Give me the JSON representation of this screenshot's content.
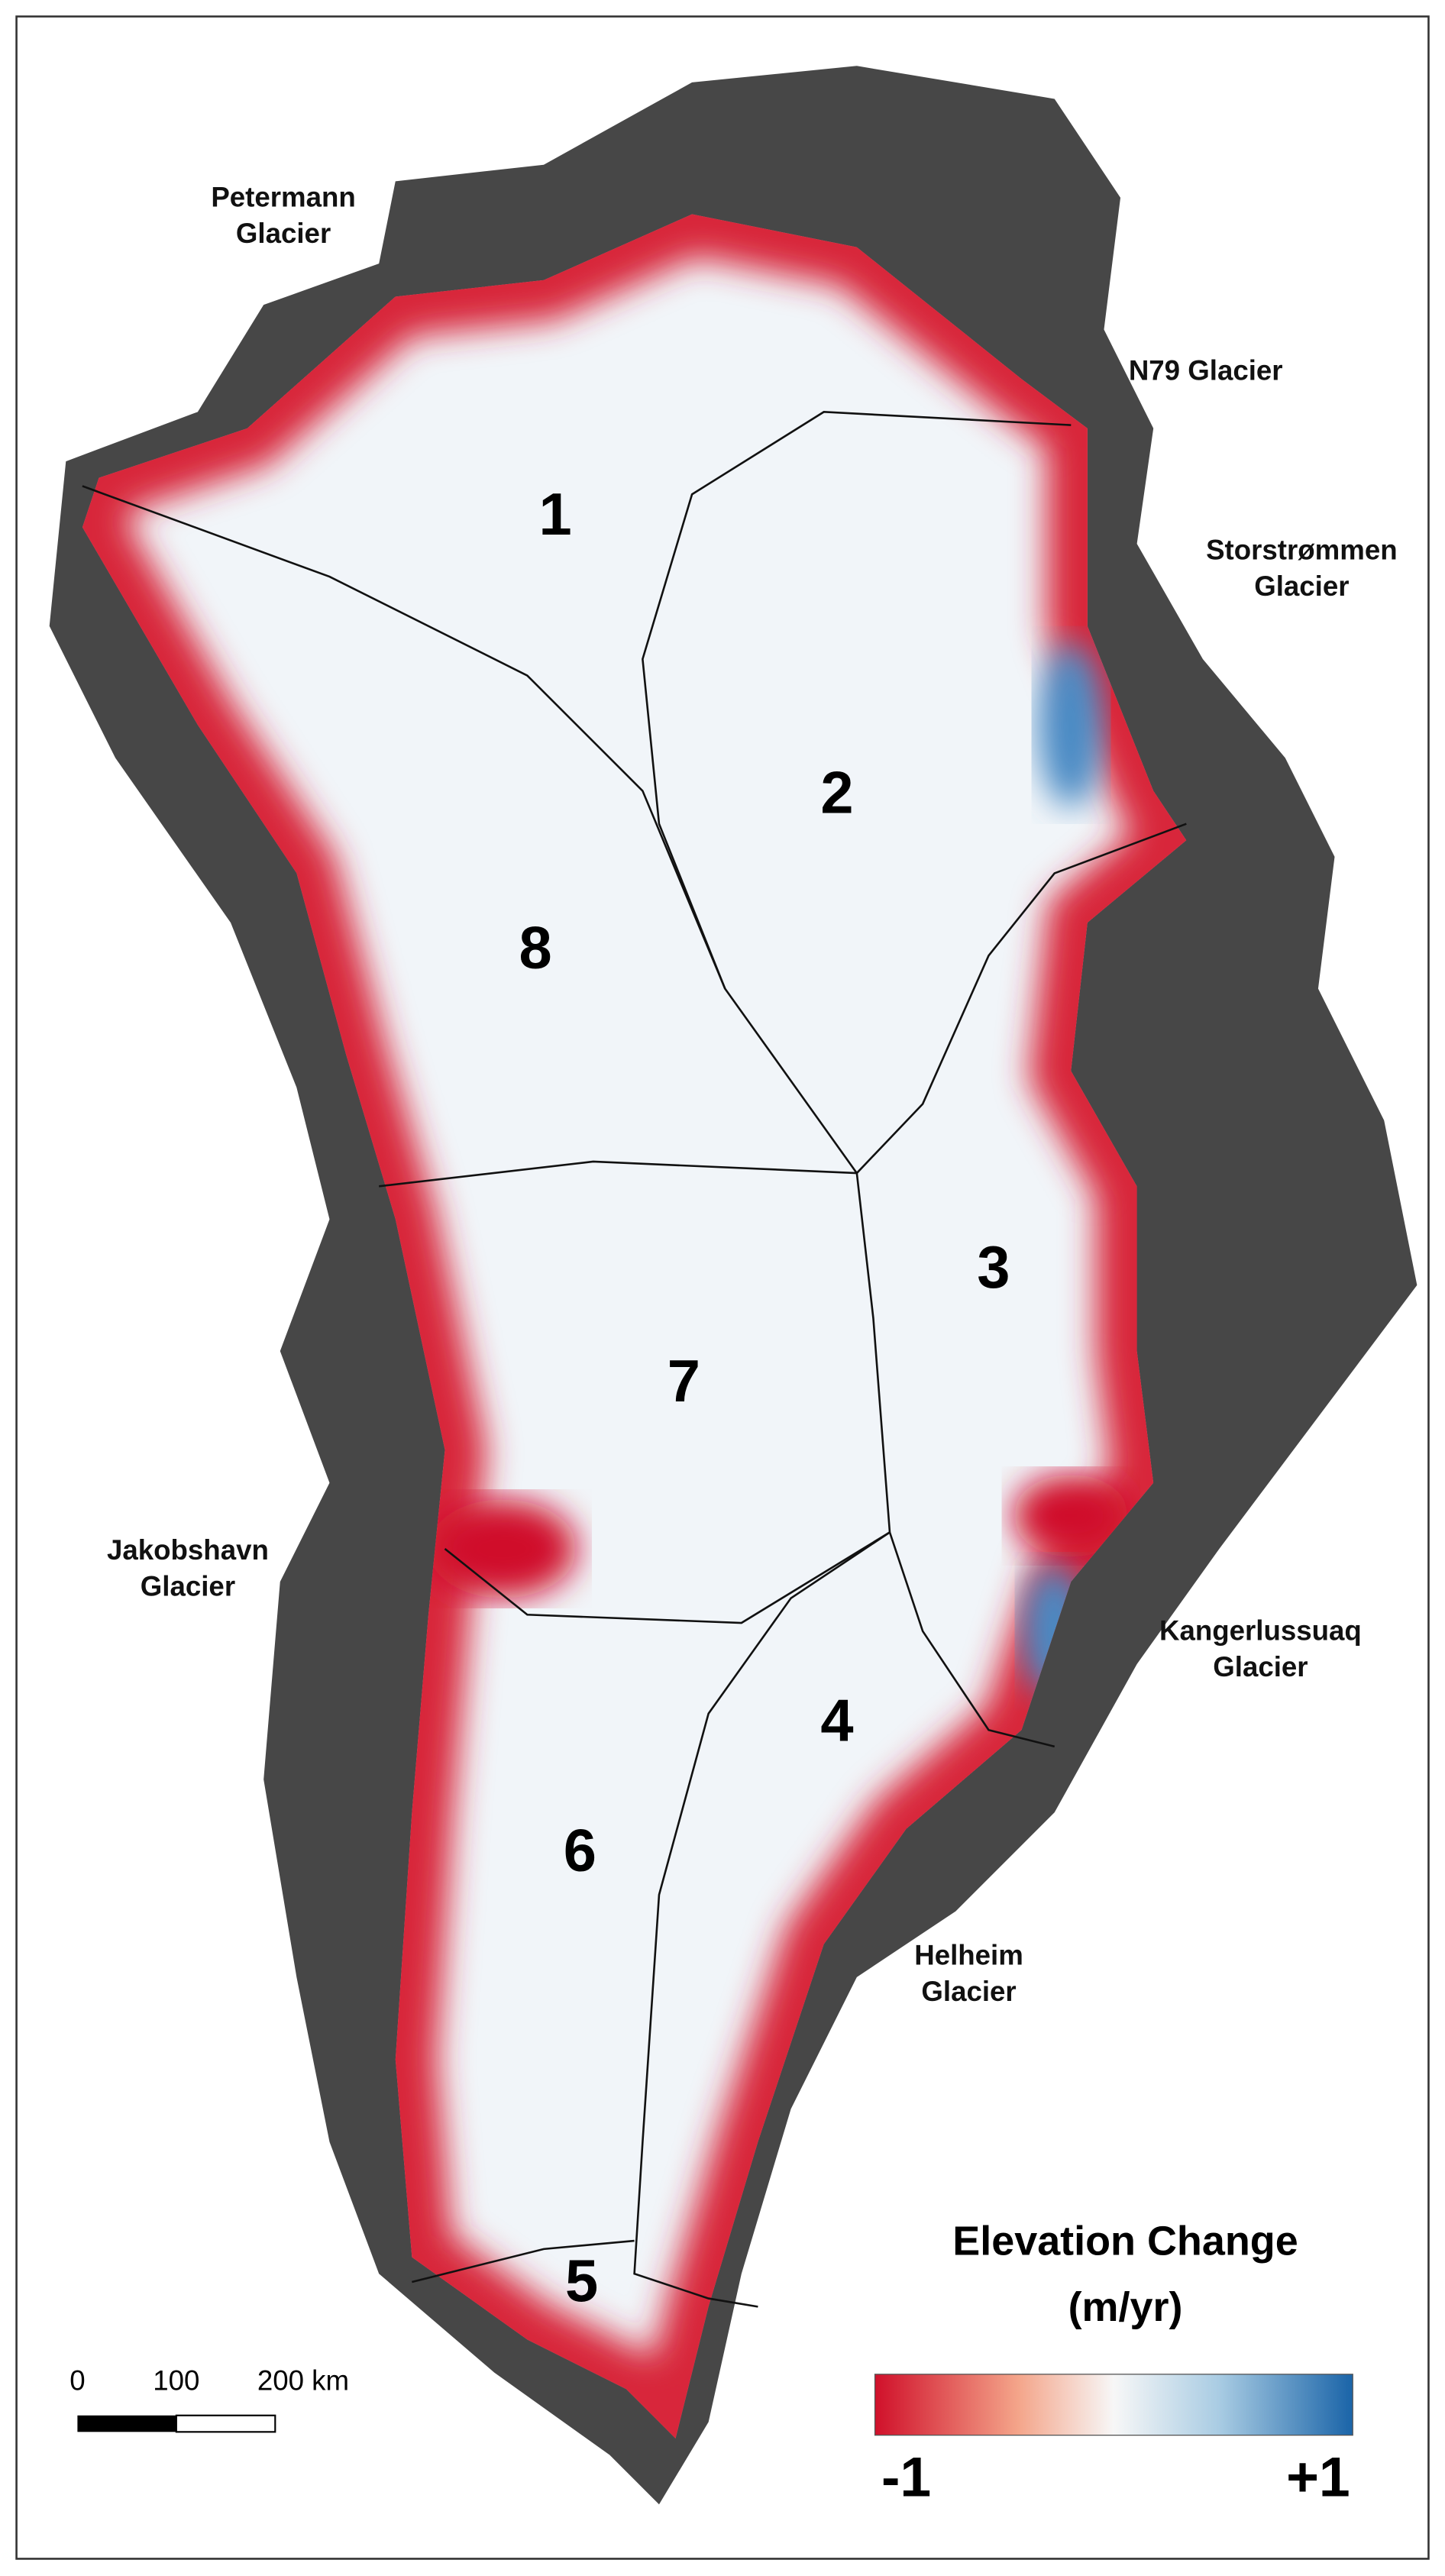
{
  "regions": [
    "1",
    "2",
    "3",
    "4",
    "5",
    "6",
    "7",
    "8"
  ],
  "glaciers": [
    {
      "lines": [
        "Petermann",
        "Glacier"
      ]
    },
    {
      "lines": [
        "N79 Glacier"
      ]
    },
    {
      "lines": [
        "Storstrømmen",
        "Glacier"
      ]
    },
    {
      "lines": [
        "Jakobshavn",
        "Glacier"
      ]
    },
    {
      "lines": [
        "Kangerlussuaq",
        "Glacier"
      ]
    },
    {
      "lines": [
        "Helheim",
        "Glacier"
      ]
    }
  ],
  "legend": {
    "title": "Elevation Change",
    "units": "(m/yr)",
    "min_label": "-1",
    "max_label": "+1"
  },
  "scale_bar": {
    "labels": [
      "0",
      "100",
      "200 km"
    ]
  }
}
